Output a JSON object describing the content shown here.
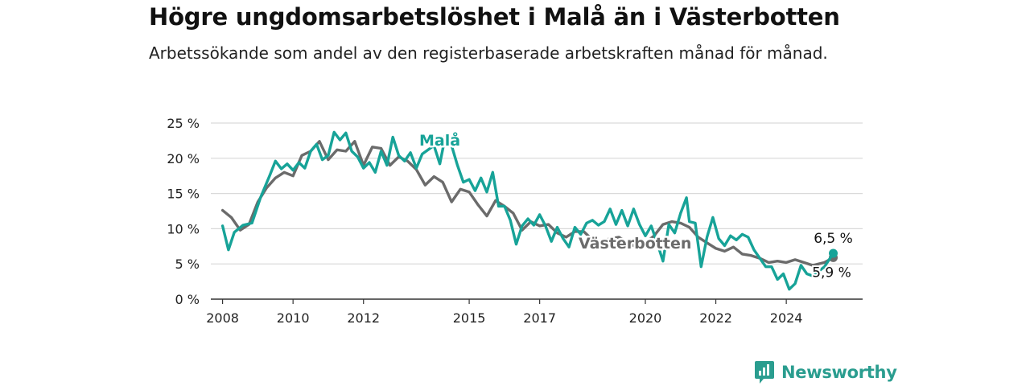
{
  "title": "Högre ungdomsarbetslöshet i Malå än i Västerbotten",
  "subtitle": "Arbetssökande som andel av den registerbaserade arbetskraften månad för månad.",
  "brand": {
    "name": "Newsworthy"
  },
  "colors": {
    "mala": "#17a398",
    "vasterbotten": "#6b6b6b",
    "grid": "#d9d9d9",
    "axis": "#333333",
    "brand": "#2a9d8f"
  },
  "chart_data": {
    "type": "line",
    "x_ticks": [
      "2008",
      "2010",
      "2012",
      "2015",
      "2017",
      "2020",
      "2022",
      "2024"
    ],
    "y_ticks": [
      "0 %",
      "5 %",
      "10 %",
      "15 %",
      "20 %",
      "25 %"
    ],
    "ylim": [
      0,
      25
    ],
    "xlim": [
      "2007-09",
      "2026-03"
    ],
    "grid": true,
    "series": [
      {
        "name": "Malå",
        "color": "#17a398",
        "end_label": "6,5 %",
        "points": [
          [
            "2008-01",
            10.4
          ],
          [
            "2008-03",
            7.0
          ],
          [
            "2008-05",
            9.5
          ],
          [
            "2008-08",
            10.5
          ],
          [
            "2008-11",
            10.8
          ],
          [
            "2009-02",
            14.5
          ],
          [
            "2009-05",
            17.5
          ],
          [
            "2009-07",
            19.6
          ],
          [
            "2009-09",
            18.5
          ],
          [
            "2009-11",
            19.2
          ],
          [
            "2010-01",
            18.3
          ],
          [
            "2010-03",
            19.4
          ],
          [
            "2010-05",
            18.6
          ],
          [
            "2010-07",
            21.0
          ],
          [
            "2010-09",
            22.0
          ],
          [
            "2010-11",
            19.8
          ],
          [
            "2011-01",
            20.4
          ],
          [
            "2011-03",
            23.7
          ],
          [
            "2011-05",
            22.6
          ],
          [
            "2011-07",
            23.6
          ],
          [
            "2011-09",
            21.0
          ],
          [
            "2011-11",
            20.2
          ],
          [
            "2012-01",
            18.6
          ],
          [
            "2012-03",
            19.4
          ],
          [
            "2012-05",
            18.0
          ],
          [
            "2012-07",
            21.0
          ],
          [
            "2012-09",
            19.0
          ],
          [
            "2012-11",
            23.0
          ],
          [
            "2013-01",
            20.4
          ],
          [
            "2013-03",
            19.6
          ],
          [
            "2013-05",
            20.8
          ],
          [
            "2013-07",
            18.6
          ],
          [
            "2013-09",
            20.6
          ],
          [
            "2014-01",
            21.8
          ],
          [
            "2014-03",
            19.2
          ],
          [
            "2014-05",
            23.4
          ],
          [
            "2014-07",
            21.8
          ],
          [
            "2014-09",
            19.0
          ],
          [
            "2014-11",
            16.6
          ],
          [
            "2015-01",
            17.0
          ],
          [
            "2015-03",
            15.4
          ],
          [
            "2015-05",
            17.2
          ],
          [
            "2015-07",
            15.2
          ],
          [
            "2015-09",
            18.0
          ],
          [
            "2015-11",
            13.2
          ],
          [
            "2016-01",
            13.2
          ],
          [
            "2016-03",
            11.2
          ],
          [
            "2016-05",
            7.8
          ],
          [
            "2016-07",
            10.4
          ],
          [
            "2016-09",
            11.4
          ],
          [
            "2016-11",
            10.5
          ],
          [
            "2017-01",
            12.0
          ],
          [
            "2017-03",
            10.4
          ],
          [
            "2017-05",
            8.2
          ],
          [
            "2017-07",
            10.2
          ],
          [
            "2017-09",
            8.6
          ],
          [
            "2017-11",
            7.4
          ],
          [
            "2018-01",
            10.2
          ],
          [
            "2018-03",
            9.2
          ],
          [
            "2018-05",
            10.8
          ],
          [
            "2018-07",
            11.2
          ],
          [
            "2018-09",
            10.5
          ],
          [
            "2018-11",
            11.0
          ],
          [
            "2019-01",
            12.8
          ],
          [
            "2019-03",
            10.6
          ],
          [
            "2019-05",
            12.6
          ],
          [
            "2019-07",
            10.4
          ],
          [
            "2019-09",
            12.8
          ],
          [
            "2019-11",
            10.6
          ],
          [
            "2020-01",
            9.0
          ],
          [
            "2020-03",
            10.4
          ],
          [
            "2020-05",
            8.0
          ],
          [
            "2020-07",
            5.4
          ],
          [
            "2020-09",
            10.6
          ],
          [
            "2020-11",
            9.4
          ],
          [
            "2021-01",
            12.2
          ],
          [
            "2021-03",
            14.4
          ],
          [
            "2021-04",
            11.0
          ],
          [
            "2021-06",
            10.8
          ],
          [
            "2021-08",
            4.6
          ],
          [
            "2021-10",
            8.8
          ],
          [
            "2021-12",
            11.6
          ],
          [
            "2022-02",
            8.6
          ],
          [
            "2022-04",
            7.6
          ],
          [
            "2022-06",
            9.0
          ],
          [
            "2022-08",
            8.4
          ],
          [
            "2022-10",
            9.2
          ],
          [
            "2022-12",
            8.8
          ],
          [
            "2023-02",
            7.0
          ],
          [
            "2023-04",
            5.8
          ],
          [
            "2023-06",
            4.6
          ],
          [
            "2023-08",
            4.6
          ],
          [
            "2023-10",
            2.8
          ],
          [
            "2023-12",
            3.6
          ],
          [
            "2024-02",
            1.4
          ],
          [
            "2024-04",
            2.2
          ],
          [
            "2024-06",
            4.8
          ],
          [
            "2024-08",
            3.6
          ],
          [
            "2024-10",
            3.3
          ],
          [
            "2025-02",
            4.6
          ],
          [
            "2025-05",
            6.5
          ]
        ]
      },
      {
        "name": "Västerbotten",
        "color": "#6b6b6b",
        "end_label": "5,9 %",
        "points": [
          [
            "2008-01",
            12.6
          ],
          [
            "2008-04",
            11.6
          ],
          [
            "2008-07",
            9.8
          ],
          [
            "2008-10",
            10.6
          ],
          [
            "2009-01",
            13.8
          ],
          [
            "2009-04",
            15.8
          ],
          [
            "2009-07",
            17.2
          ],
          [
            "2009-10",
            18.0
          ],
          [
            "2010-01",
            17.5
          ],
          [
            "2010-04",
            20.4
          ],
          [
            "2010-07",
            21.0
          ],
          [
            "2010-10",
            22.4
          ],
          [
            "2011-01",
            19.8
          ],
          [
            "2011-04",
            21.2
          ],
          [
            "2011-07",
            21.0
          ],
          [
            "2011-10",
            22.4
          ],
          [
            "2012-01",
            19.0
          ],
          [
            "2012-04",
            21.6
          ],
          [
            "2012-07",
            21.4
          ],
          [
            "2012-10",
            19.0
          ],
          [
            "2013-01",
            20.2
          ],
          [
            "2013-04",
            19.6
          ],
          [
            "2013-07",
            18.4
          ],
          [
            "2013-10",
            16.2
          ],
          [
            "2014-01",
            17.4
          ],
          [
            "2014-04",
            16.6
          ],
          [
            "2014-07",
            13.8
          ],
          [
            "2014-10",
            15.6
          ],
          [
            "2015-01",
            15.2
          ],
          [
            "2015-04",
            13.4
          ],
          [
            "2015-07",
            11.8
          ],
          [
            "2015-10",
            14.0
          ],
          [
            "2016-01",
            13.2
          ],
          [
            "2016-04",
            12.2
          ],
          [
            "2016-07",
            9.8
          ],
          [
            "2016-10",
            11.0
          ],
          [
            "2017-01",
            10.4
          ],
          [
            "2017-04",
            10.6
          ],
          [
            "2017-07",
            9.4
          ],
          [
            "2017-10",
            8.8
          ],
          [
            "2018-01",
            9.6
          ],
          [
            "2018-04",
            9.6
          ],
          [
            "2018-07",
            8.4
          ],
          [
            "2018-10",
            8.2
          ],
          [
            "2019-01",
            8.6
          ],
          [
            "2019-04",
            8.8
          ],
          [
            "2019-07",
            8.0
          ],
          [
            "2019-10",
            7.4
          ],
          [
            "2020-01",
            8.0
          ],
          [
            "2020-04",
            9.0
          ],
          [
            "2020-07",
            10.6
          ],
          [
            "2020-10",
            11.0
          ],
          [
            "2021-01",
            10.8
          ],
          [
            "2021-04",
            10.2
          ],
          [
            "2021-07",
            8.8
          ],
          [
            "2021-10",
            8.0
          ],
          [
            "2022-01",
            7.2
          ],
          [
            "2022-04",
            6.8
          ],
          [
            "2022-07",
            7.4
          ],
          [
            "2022-10",
            6.4
          ],
          [
            "2023-01",
            6.2
          ],
          [
            "2023-04",
            5.8
          ],
          [
            "2023-07",
            5.2
          ],
          [
            "2023-10",
            5.4
          ],
          [
            "2024-01",
            5.2
          ],
          [
            "2024-04",
            5.6
          ],
          [
            "2024-07",
            5.2
          ],
          [
            "2024-10",
            4.8
          ],
          [
            "2025-02",
            5.2
          ],
          [
            "2025-05",
            5.9
          ]
        ]
      }
    ]
  }
}
